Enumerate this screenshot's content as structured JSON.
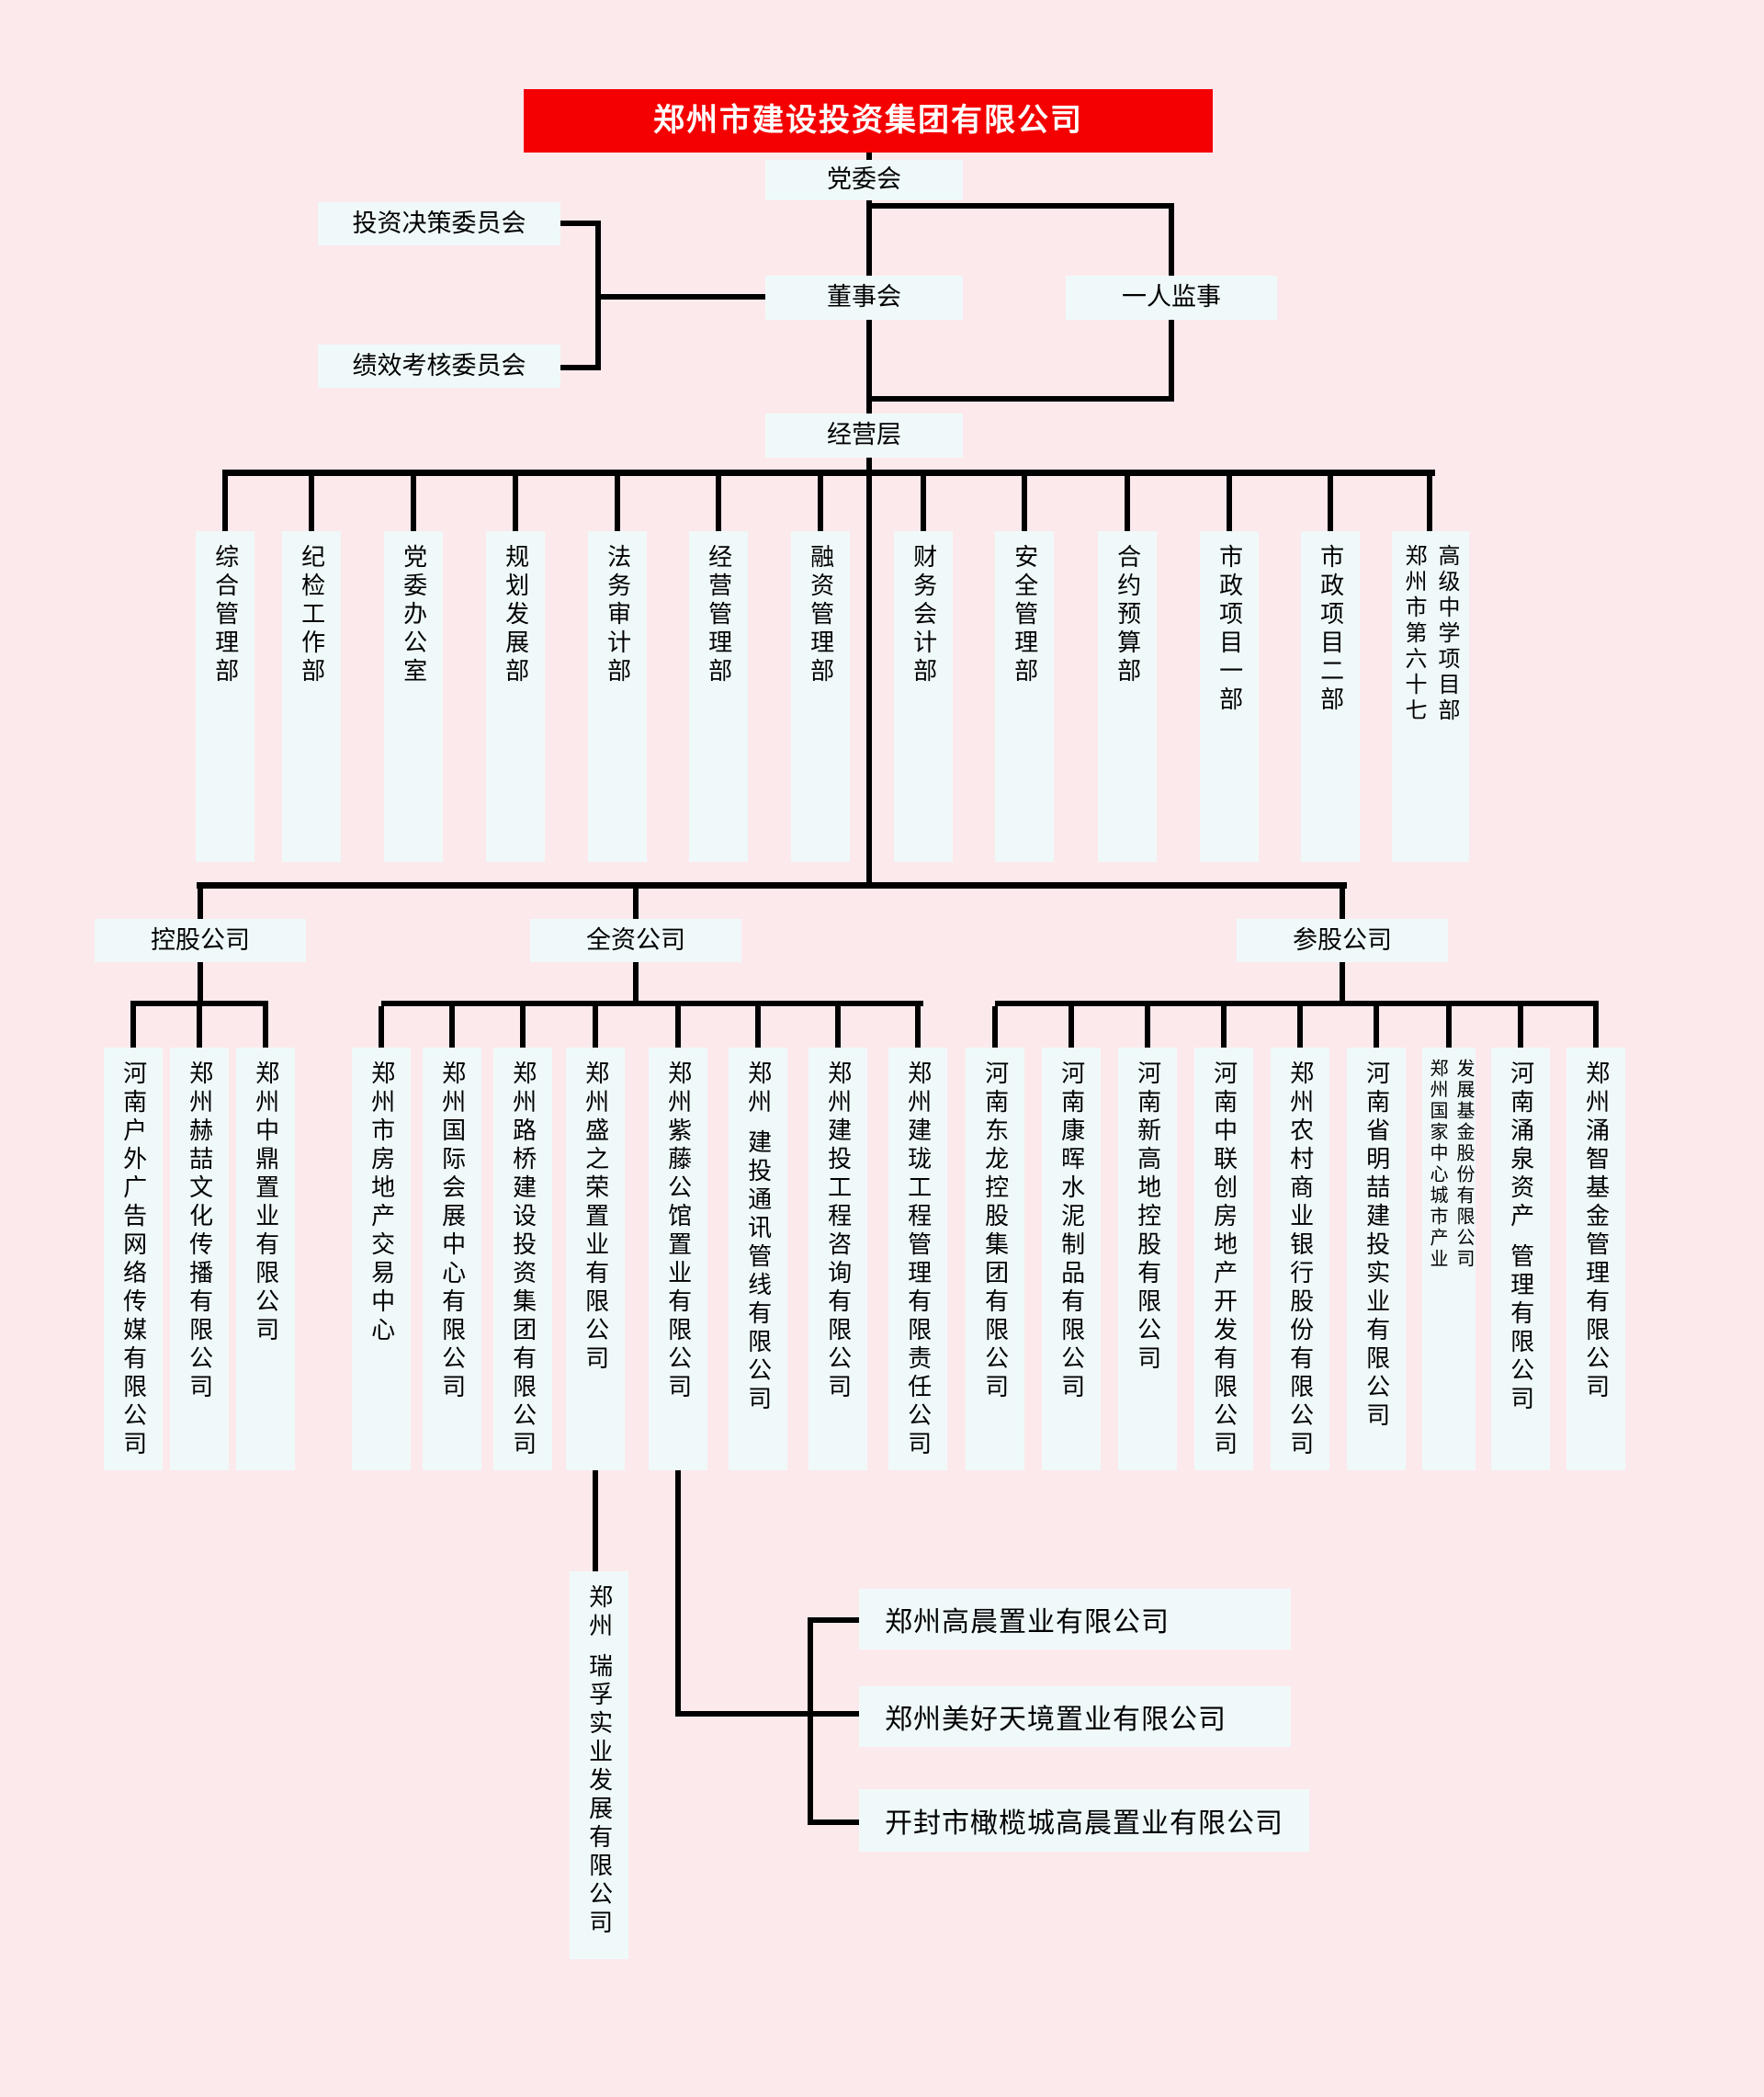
{
  "title": "郑州市建设投资集团有限公司",
  "nodes": {
    "party_committee": "党委会",
    "board": "董事会",
    "sole_supervisor": "一人监事",
    "management": "经营层",
    "investment_committee": "投资决策委员会",
    "performance_committee": "绩效考核委员会"
  },
  "departments": [
    "综合管理部",
    "纪检工作部",
    "党委办公室",
    "规划发展部",
    "法务审计部",
    "经营管理部",
    "融资管理部",
    "财务会计部",
    "安全管理部",
    "合约预算部",
    "市政项目一部",
    "市政项目二部",
    "郑州市第六十七\n高级中学项目部"
  ],
  "groups": [
    {
      "label": "控股公司",
      "children": [
        "河南户外广告网络传媒有限公司",
        "郑州赫喆文化传播有限公司",
        "郑州中鼎置业有限公司"
      ]
    },
    {
      "label": "全资公司",
      "children": [
        "郑州市房地产交易中心",
        "郑州国际会展中心有限公司",
        "郑州路桥建设投资集团有限公司",
        "郑州盛之荣置业有限公司",
        "郑州紫藤公馆置业有限公司",
        "郑州 建投通讯管线有限公司",
        "郑州建投工程咨询有限公司",
        "郑州建珑工程管理有限责任公司"
      ]
    },
    {
      "label": "参股公司",
      "children": [
        "河南东龙控股集团有限公司",
        "河南康晖水泥制品有限公司",
        "河南新高地控股有限公司",
        "河南中联创房地产开发有限公司",
        "郑州农村商业银行股份有限公司",
        "河南省明喆建投实业有限公司",
        "郑州国家中心城市产业\n发展基金股份有限公司",
        "河南涌泉资产 管理有限公司",
        "郑州涌智基金管理有限公司"
      ]
    }
  ],
  "bottom": {
    "ruifu": "郑州 瑞孚实业发展有限公司",
    "ziteng_children": [
      "郑州高晨置业有限公司",
      "郑州美好天境置业有限公司",
      "开封市橄榄城高晨置业有限公司"
    ]
  },
  "colors": {
    "background": "#fce9ec",
    "box": "#f0f9fa",
    "banner": "#f50000",
    "line": "#000000"
  }
}
